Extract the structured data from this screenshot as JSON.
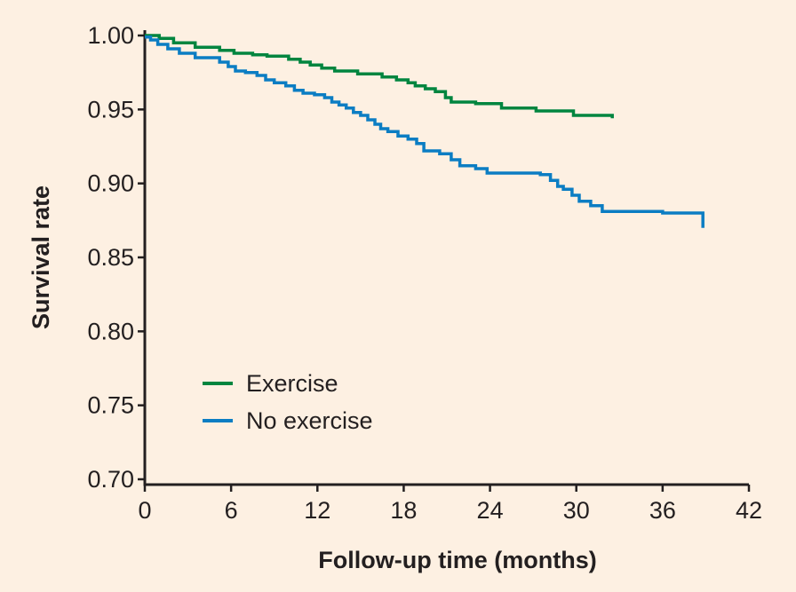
{
  "chart_data": {
    "type": "line",
    "title": "",
    "xlabel": "Follow-up time (months)",
    "ylabel": "Survival rate",
    "xlim": [
      0,
      42
    ],
    "ylim": [
      0.7,
      1.0
    ],
    "xticks": [
      "0",
      "6",
      "12",
      "18",
      "24",
      "30",
      "36",
      "42"
    ],
    "yticks": [
      "0.70",
      "0.75",
      "0.80",
      "0.85",
      "0.90",
      "0.95",
      "1.00"
    ],
    "grid": false,
    "legend_position": "bottom-left",
    "series": [
      {
        "name": "Exercise",
        "color": "#00853f",
        "step": true,
        "points": [
          [
            0,
            1.0
          ],
          [
            1.0,
            0.998
          ],
          [
            2.0,
            0.995
          ],
          [
            3.5,
            0.992
          ],
          [
            5.2,
            0.99
          ],
          [
            6.2,
            0.988
          ],
          [
            7.5,
            0.987
          ],
          [
            8.5,
            0.986
          ],
          [
            10.0,
            0.984
          ],
          [
            10.8,
            0.982
          ],
          [
            11.5,
            0.98
          ],
          [
            12.3,
            0.978
          ],
          [
            13.2,
            0.976
          ],
          [
            14.8,
            0.974
          ],
          [
            16.5,
            0.972
          ],
          [
            17.5,
            0.97
          ],
          [
            18.3,
            0.968
          ],
          [
            18.8,
            0.966
          ],
          [
            19.5,
            0.964
          ],
          [
            20.2,
            0.962
          ],
          [
            20.9,
            0.958
          ],
          [
            21.3,
            0.955
          ],
          [
            23.0,
            0.954
          ],
          [
            24.8,
            0.951
          ],
          [
            27.2,
            0.949
          ],
          [
            29.8,
            0.946
          ],
          [
            32.5,
            0.944
          ]
        ]
      },
      {
        "name": "No exercise",
        "color": "#0b7dc3",
        "step": true,
        "points": [
          [
            0,
            0.999
          ],
          [
            0.4,
            0.997
          ],
          [
            0.9,
            0.994
          ],
          [
            1.6,
            0.991
          ],
          [
            2.4,
            0.988
          ],
          [
            3.5,
            0.985
          ],
          [
            5.2,
            0.982
          ],
          [
            5.8,
            0.979
          ],
          [
            6.3,
            0.976
          ],
          [
            7.0,
            0.975
          ],
          [
            7.8,
            0.973
          ],
          [
            8.4,
            0.97
          ],
          [
            9.0,
            0.968
          ],
          [
            9.8,
            0.966
          ],
          [
            10.4,
            0.963
          ],
          [
            11.0,
            0.961
          ],
          [
            11.8,
            0.96
          ],
          [
            12.5,
            0.958
          ],
          [
            13.0,
            0.955
          ],
          [
            13.5,
            0.953
          ],
          [
            14.0,
            0.951
          ],
          [
            14.5,
            0.948
          ],
          [
            15.0,
            0.946
          ],
          [
            15.5,
            0.943
          ],
          [
            16.0,
            0.94
          ],
          [
            16.4,
            0.937
          ],
          [
            16.9,
            0.935
          ],
          [
            17.6,
            0.932
          ],
          [
            18.3,
            0.93
          ],
          [
            18.9,
            0.927
          ],
          [
            19.4,
            0.922
          ],
          [
            20.5,
            0.92
          ],
          [
            21.3,
            0.916
          ],
          [
            21.9,
            0.912
          ],
          [
            23.0,
            0.91
          ],
          [
            23.8,
            0.907
          ],
          [
            27.5,
            0.906
          ],
          [
            28.2,
            0.902
          ],
          [
            28.7,
            0.898
          ],
          [
            29.1,
            0.896
          ],
          [
            29.7,
            0.892
          ],
          [
            30.2,
            0.888
          ],
          [
            31.0,
            0.885
          ],
          [
            31.8,
            0.881
          ],
          [
            36.0,
            0.88
          ],
          [
            38.8,
            0.87
          ]
        ]
      }
    ]
  }
}
